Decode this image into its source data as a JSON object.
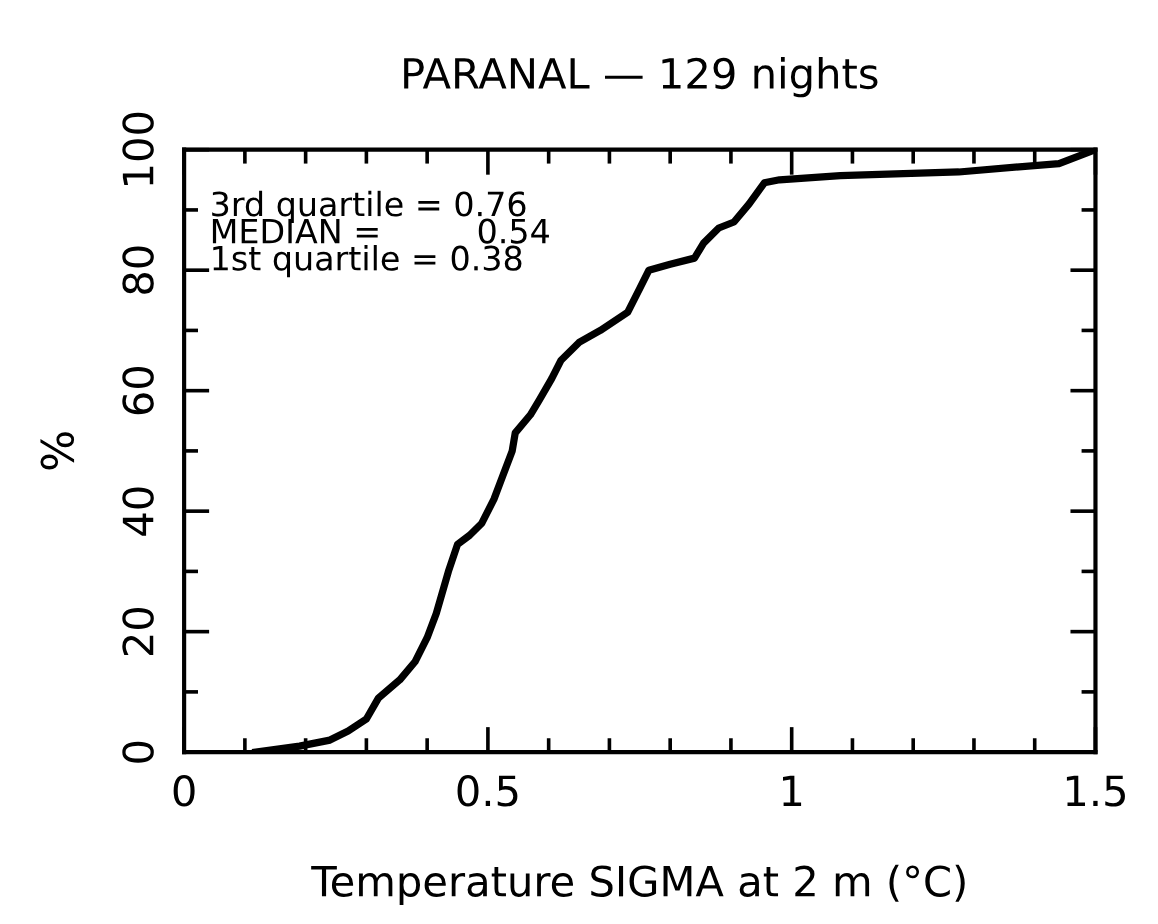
{
  "chart_data": {
    "type": "line",
    "title": "PARANAL — 129 nights",
    "xlabel": "Temperature SIGMA at 2 m (°C)",
    "ylabel": "%",
    "annotations": [
      "3rd quartile = 0.76",
      "MEDIAN =         0.54",
      "1st quartile = 0.38"
    ],
    "series": [
      {
        "color": "#000000",
        "x": [
          0.118,
          0.19,
          0.24,
          0.27,
          0.3,
          0.32,
          0.355,
          0.38,
          0.4,
          0.415,
          0.435,
          0.45,
          0.47,
          0.49,
          0.51,
          0.525,
          0.54,
          0.545,
          0.57,
          0.585,
          0.605,
          0.62,
          0.65,
          0.685,
          0.73,
          0.75,
          0.765,
          0.8,
          0.84,
          0.855,
          0.88,
          0.905,
          0.93,
          0.955,
          0.98,
          1.08,
          1.275,
          1.44,
          1.5
        ],
        "values": [
          0,
          1,
          2,
          3.5,
          5.5,
          9,
          12,
          15,
          19,
          23,
          30,
          34.5,
          36,
          38,
          42,
          46,
          50,
          53,
          56,
          58.5,
          62,
          65,
          68,
          70,
          73,
          77,
          80,
          81,
          82,
          84.5,
          87,
          88,
          91,
          94.5,
          95,
          95.7,
          96.3,
          97.7,
          100
        ]
      }
    ],
    "xlim": [
      0,
      1.5
    ],
    "ylim": [
      0,
      100
    ],
    "xticks": [
      0,
      {
        "value": 0.1,
        "label": null
      },
      {
        "value": 0.2,
        "label": null
      },
      {
        "value": 0.3,
        "label": null
      },
      {
        "value": 0.4,
        "label": null
      },
      0.5,
      {
        "value": 0.6,
        "label": null
      },
      {
        "value": 0.7,
        "label": null
      },
      {
        "value": 0.8,
        "label": null
      },
      {
        "value": 0.9,
        "label": null
      },
      1,
      {
        "value": 1.1,
        "label": null
      },
      {
        "value": 1.2,
        "label": null
      },
      {
        "value": 1.3,
        "label": null
      },
      {
        "value": 1.4,
        "label": null
      },
      1.5
    ],
    "yticks": [
      0,
      {
        "value": 10,
        "label": null
      },
      20,
      {
        "value": 30,
        "label": null
      },
      40,
      {
        "value": 50,
        "label": null
      },
      60,
      {
        "value": 70,
        "label": null
      },
      80,
      {
        "value": 90,
        "label": null
      },
      100
    ],
    "grid": false,
    "legend": false,
    "marker": "none",
    "line_style": "solid"
  }
}
